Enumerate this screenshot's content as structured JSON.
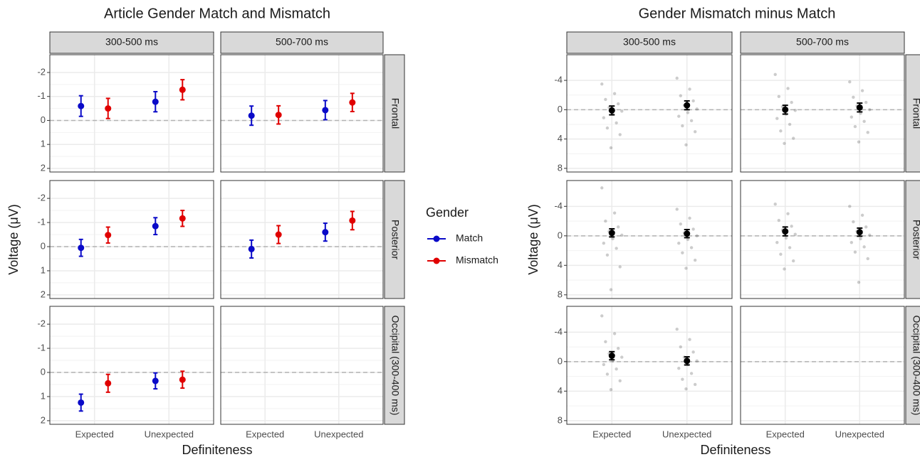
{
  "chart_data": [
    {
      "type": "pointrange",
      "title": "Article Gender Match and Mismatch",
      "x_label": "Definiteness",
      "y_label": "Voltage (μV)",
      "columns": [
        "300-500 ms",
        "500-700 ms"
      ],
      "rows": [
        "Frontal",
        "Posterior",
        "Occipital (300-400 ms)"
      ],
      "categories": [
        "Expected",
        "Unexpected"
      ],
      "ylim": [
        -2.74,
        2.15
      ],
      "y_reversed": true,
      "yticks": [
        -2,
        -1,
        0,
        1,
        2
      ],
      "grid": true,
      "hline": 0,
      "legend_title": "Gender",
      "legend_position": "right",
      "series": [
        {
          "name": "Match",
          "color": "#0a0ac8",
          "values": [
            [
              [
                -0.6,
                -0.78
              ],
              [
                -0.2,
                -0.43
              ]
            ],
            [
              [
                0.05,
                -0.85
              ],
              [
                0.1,
                -0.6
              ]
            ],
            [
              [
                1.25,
                0.35
              ],
              null
            ]
          ],
          "errors": [
            [
              [
                0.43,
                0.42
              ],
              [
                0.4,
                0.4
              ]
            ],
            [
              [
                0.35,
                0.35
              ],
              [
                0.37,
                0.37
              ]
            ],
            [
              [
                0.35,
                0.33
              ],
              null
            ]
          ]
        },
        {
          "name": "Mismatch",
          "color": "#e00000",
          "values": [
            [
              [
                -0.5,
                -1.28
              ],
              [
                -0.23,
                -0.75
              ]
            ],
            [
              [
                -0.48,
                -1.17
              ],
              [
                -0.5,
                -1.08
              ]
            ],
            [
              [
                0.45,
                0.3
              ],
              null
            ]
          ],
          "errors": [
            [
              [
                0.42,
                0.42
              ],
              [
                0.38,
                0.38
              ]
            ],
            [
              [
                0.33,
                0.33
              ],
              [
                0.37,
                0.38
              ]
            ],
            [
              [
                0.37,
                0.35
              ],
              null
            ]
          ]
        }
      ]
    },
    {
      "type": "jitter",
      "title": "Gender Mismatch minus Match",
      "x_label": "Definiteness",
      "y_label": "Voltage (μV)",
      "columns": [
        "300-500 ms",
        "500-700 ms"
      ],
      "rows": [
        "Frontal",
        "Posterior",
        "Occipital (300-400 ms)"
      ],
      "categories": [
        "Expected",
        "Unexpected"
      ],
      "ylim": [
        -7.5,
        8.5
      ],
      "y_reversed": true,
      "yticks": [
        -4,
        0,
        4,
        8
      ],
      "grid": true,
      "hline": 0,
      "color": "#000000",
      "means": [
        [
          [
            0.1,
            -0.6
          ],
          [
            0.0,
            -0.3
          ]
        ],
        [
          [
            -0.4,
            -0.3
          ],
          [
            -0.6,
            -0.5
          ]
        ],
        [
          [
            -0.8,
            -0.1
          ],
          null
        ]
      ],
      "errors": [
        [
          [
            0.6,
            0.6
          ],
          [
            0.6,
            0.6
          ]
        ],
        [
          [
            0.55,
            0.55
          ],
          [
            0.6,
            0.55
          ]
        ],
        [
          [
            0.55,
            0.55
          ],
          null
        ]
      ],
      "points": [
        [
          [
            [
              -3.5,
              -2.2,
              -1.4,
              -0.8,
              -0.3,
              0.2,
              0.6,
              1.1,
              1.8,
              2.5,
              3.4,
              5.2
            ],
            [
              -4.3,
              -2.8,
              -1.9,
              -1.2,
              -0.6,
              -0.1,
              0.4,
              0.9,
              1.5,
              2.2,
              3.0,
              4.8
            ]
          ],
          [
            [
              -4.8,
              -2.9,
              -1.8,
              -1.0,
              -0.4,
              0.1,
              0.6,
              1.2,
              2.0,
              2.9,
              3.9,
              4.6
            ],
            [
              -3.8,
              -2.6,
              -1.7,
              -1.0,
              -0.5,
              0.0,
              0.5,
              1.0,
              1.6,
              2.3,
              3.1,
              4.4
            ]
          ]
        ],
        [
          [
            [
              -6.5,
              -3.1,
              -2.0,
              -1.2,
              -0.6,
              -0.1,
              0.4,
              1.0,
              1.7,
              2.6,
              4.2,
              7.3
            ],
            [
              -3.6,
              -2.4,
              -1.6,
              -0.9,
              -0.4,
              0.0,
              0.5,
              1.0,
              1.6,
              2.3,
              3.3,
              4.4
            ]
          ],
          [
            [
              -4.3,
              -3.0,
              -2.1,
              -1.3,
              -0.8,
              -0.2,
              0.3,
              0.9,
              1.6,
              2.5,
              3.4,
              4.5
            ],
            [
              -4.0,
              -2.8,
              -1.9,
              -1.2,
              -0.6,
              -0.1,
              0.4,
              0.9,
              1.5,
              2.2,
              3.1,
              6.3
            ]
          ]
        ],
        [
          [
            [
              -6.2,
              -3.8,
              -2.7,
              -1.8,
              -1.1,
              -0.6,
              -0.1,
              0.4,
              1.0,
              1.7,
              2.6,
              3.8
            ],
            [
              -4.4,
              -3.0,
              -2.0,
              -1.3,
              -0.6,
              -0.1,
              0.4,
              0.9,
              1.6,
              2.4,
              3.1,
              3.7
            ]
          ],
          null
        ]
      ]
    }
  ]
}
